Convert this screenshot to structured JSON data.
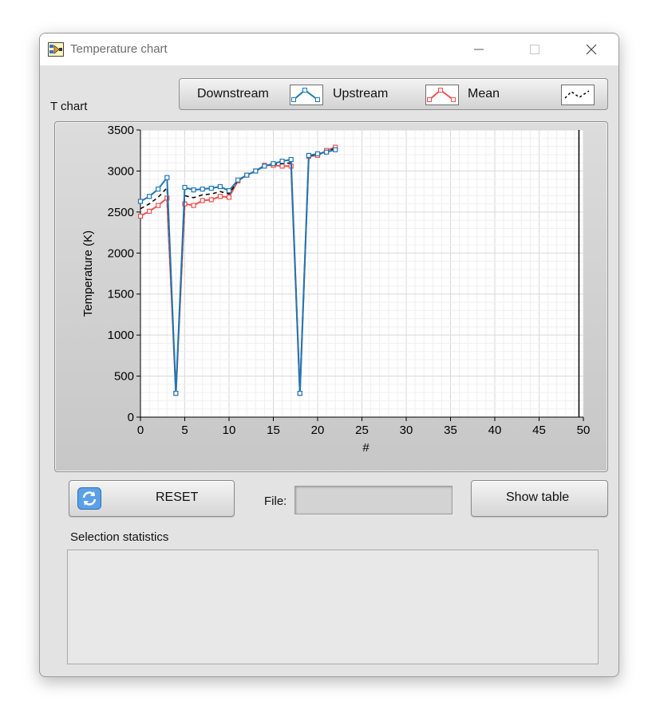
{
  "window": {
    "title": "Temperature chart",
    "icons": {
      "app": "labview-vi-icon",
      "minimize": "minimize-icon",
      "maximize": "maximize-icon",
      "close": "close-icon"
    }
  },
  "chart_panel": {
    "label": "T chart",
    "legend": [
      {
        "label": "Downstream",
        "color": "#1f77b4",
        "style": "line-with-square-markers"
      },
      {
        "label": "Upstream",
        "color": "#f05050",
        "style": "line-with-square-markers"
      },
      {
        "label": "Mean",
        "color": "#000000",
        "style": "dashed-line"
      }
    ]
  },
  "chart_data": {
    "type": "line",
    "xlabel": "#",
    "ylabel": "Temperature (K)",
    "xlim": [
      0,
      50
    ],
    "ylim": [
      0,
      3500
    ],
    "x_ticks": [
      "0",
      "5",
      "10",
      "15",
      "20",
      "25",
      "30",
      "35",
      "40",
      "45",
      "50"
    ],
    "y_ticks": [
      "0",
      "500",
      "1000",
      "1500",
      "2000",
      "2500",
      "3000",
      "3500"
    ],
    "grid": true,
    "cursor_x": 49.5,
    "series": [
      {
        "name": "Downstream",
        "color": "#1f77b4",
        "x": [
          0,
          1,
          2,
          3,
          4,
          5,
          6,
          7,
          8,
          9,
          10,
          11,
          12,
          13,
          14,
          15,
          16,
          17,
          18,
          19,
          20,
          21,
          22
        ],
        "y": [
          2630,
          2690,
          2780,
          2920,
          290,
          2800,
          2770,
          2780,
          2790,
          2810,
          2760,
          2890,
          2950,
          3000,
          3060,
          3090,
          3120,
          3140,
          290,
          3190,
          3210,
          3230,
          3260
        ]
      },
      {
        "name": "Upstream",
        "color": "#f05050",
        "x": [
          0,
          1,
          2,
          3,
          4,
          5,
          6,
          7,
          8,
          9,
          10,
          11,
          12,
          13,
          14,
          15,
          16,
          17,
          18,
          19,
          20,
          21,
          22
        ],
        "y": [
          2450,
          2510,
          2580,
          2670,
          290,
          2600,
          2580,
          2640,
          2650,
          2690,
          2680,
          2880,
          2950,
          3000,
          3070,
          3070,
          3060,
          3060,
          290,
          3180,
          3190,
          3250,
          3290
        ]
      },
      {
        "name": "Mean",
        "color": "#000000",
        "x": [
          0,
          1,
          2,
          3,
          4,
          5,
          6,
          7,
          8,
          9,
          10,
          11,
          12,
          13,
          14,
          15,
          16,
          17,
          18,
          19,
          20,
          21,
          22
        ],
        "y": [
          2540,
          2600,
          2680,
          2795,
          290,
          2700,
          2675,
          2710,
          2720,
          2750,
          2720,
          2885,
          2950,
          3000,
          3065,
          3080,
          3090,
          3100,
          290,
          3185,
          3200,
          3240,
          3275
        ]
      }
    ]
  },
  "controls": {
    "reset": {
      "label": "RESET",
      "icon": "refresh-icon"
    },
    "file": {
      "label": "File:",
      "value": ""
    },
    "show_table": {
      "label": "Show table"
    }
  },
  "stats": {
    "label": "Selection statistics",
    "value": ""
  }
}
